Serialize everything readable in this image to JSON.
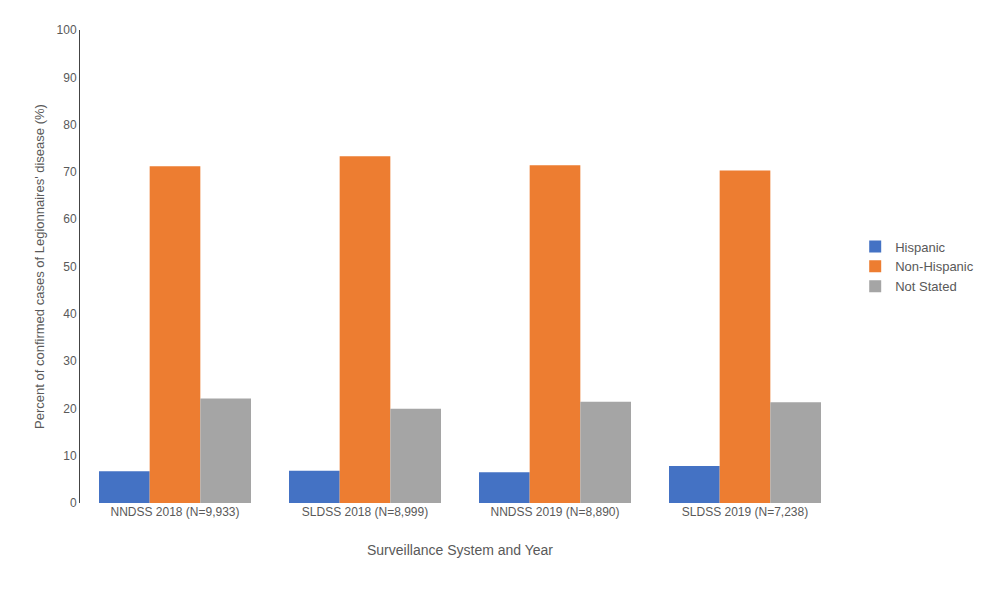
{
  "chart_data": {
    "type": "bar",
    "categories": [
      "NNDSS 2018 (N=9,933)",
      "SLDSS 2018 (N=8,999)",
      "NNDSS 2019 (N=8,890)",
      "SLDSS 2019 (N=7,238)"
    ],
    "series": [
      {
        "name": "Hispanic",
        "color": "#4472C4",
        "values": [
          6.7,
          6.8,
          6.5,
          7.8
        ]
      },
      {
        "name": "Non-Hispanic",
        "color": "#ED7D31",
        "values": [
          71.2,
          73.3,
          71.4,
          70.3
        ]
      },
      {
        "name": "Not Stated",
        "color": "#A5A5A5",
        "values": [
          22.1,
          19.9,
          21.4,
          21.3
        ]
      }
    ],
    "xlabel": "Surveillance System and Year",
    "ylabel": "Percent of confirmed cases of Legionnaires' disease (%)",
    "ylim": [
      0,
      100
    ],
    "yticks": [
      0,
      10,
      20,
      30,
      40,
      50,
      60,
      70,
      80,
      90,
      100
    ],
    "grid": false,
    "legend": "right"
  }
}
